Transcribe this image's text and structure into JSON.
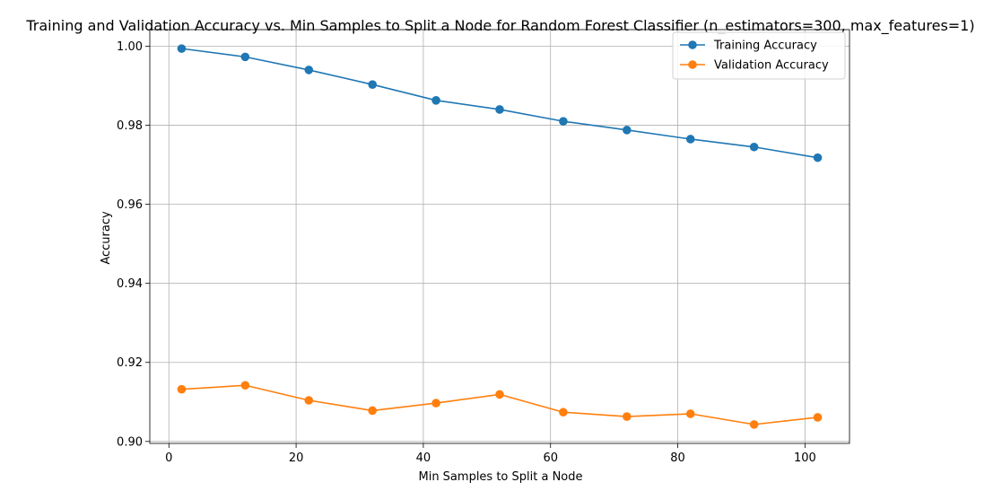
{
  "chart_data": {
    "type": "line",
    "title": "Training and Validation Accuracy vs. Min Samples to Split a Node for Random Forest Classifier (n_estimators=300, max_features=1)",
    "xlabel": "Min Samples to Split a Node",
    "ylabel": "Accuracy",
    "x": [
      2,
      12,
      22,
      32,
      42,
      52,
      62,
      72,
      82,
      92,
      102
    ],
    "xlim": [
      -3,
      107
    ],
    "ylim": [
      0.8995,
      1.0042
    ],
    "xticks": [
      0,
      20,
      40,
      60,
      80,
      100
    ],
    "xtick_labels": [
      "0",
      "20",
      "40",
      "60",
      "80",
      "100"
    ],
    "yticks": [
      0.9,
      0.92,
      0.94,
      0.96,
      0.98,
      1.0
    ],
    "ytick_labels": [
      "0.90",
      "0.92",
      "0.94",
      "0.96",
      "0.98",
      "1.00"
    ],
    "grid": true,
    "legend_position": "top-right",
    "series": [
      {
        "name": "Training Accuracy",
        "color": "#1f77b4",
        "marker": "circle",
        "values": [
          0.9994,
          0.9973,
          0.994,
          0.9903,
          0.9863,
          0.984,
          0.981,
          0.9788,
          0.9765,
          0.9745,
          0.9718
        ]
      },
      {
        "name": "Validation Accuracy",
        "color": "#ff7f0e",
        "marker": "circle",
        "values": [
          0.9132,
          0.9142,
          0.9104,
          0.9078,
          0.9097,
          0.9119,
          0.9074,
          0.9063,
          0.907,
          0.9043,
          0.9061
        ]
      }
    ]
  }
}
